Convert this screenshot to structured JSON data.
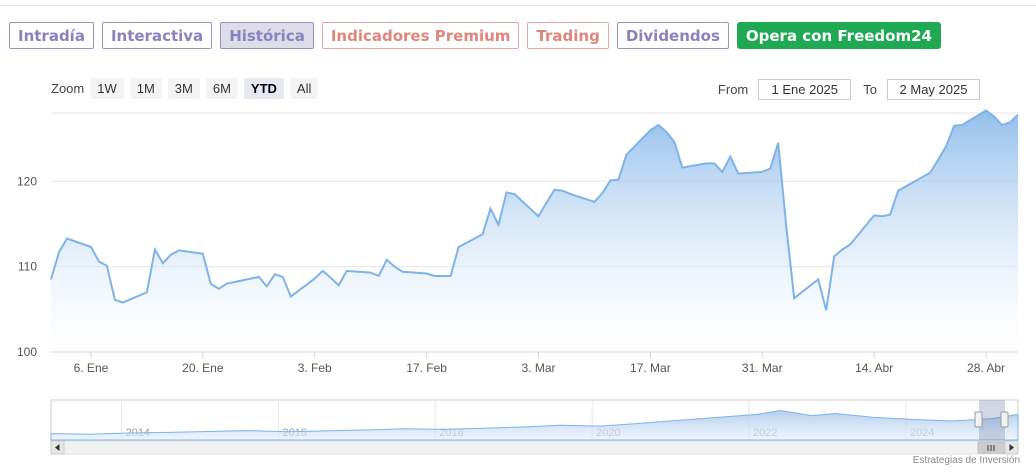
{
  "tabs": [
    {
      "label": "Intradía",
      "style": "normal"
    },
    {
      "label": "Interactiva",
      "style": "normal"
    },
    {
      "label": "Histórica",
      "style": "active"
    },
    {
      "label": "Indicadores Premium",
      "style": "premium"
    },
    {
      "label": "Trading",
      "style": "premium"
    },
    {
      "label": "Dividendos",
      "style": "normal"
    },
    {
      "label": "Opera con Freedom24",
      "style": "cta"
    }
  ],
  "zoom": {
    "label": "Zoom",
    "buttons": [
      "1W",
      "1M",
      "3M",
      "6M",
      "YTD",
      "All"
    ],
    "selected": "YTD"
  },
  "range": {
    "from_label": "From",
    "from_value": "1 Ene 2025",
    "to_label": "To",
    "to_value": "2 May 2025"
  },
  "credit": "Estrategias de Inversión",
  "colors": {
    "line": "#7fb3e8",
    "fill_top": "#7fb3e8",
    "fill_bottom": "#ffffff",
    "accent": "#1ea952"
  },
  "chart_data": {
    "type": "area",
    "x_unit": "date",
    "ylim": [
      100,
      128
    ],
    "yticks": [
      100,
      110,
      120
    ],
    "xlim": [
      "2025-01-01",
      "2025-05-02"
    ],
    "xticks": [
      {
        "date": "2025-01-06",
        "label": "6. Ene"
      },
      {
        "date": "2025-01-20",
        "label": "20. Ene"
      },
      {
        "date": "2025-02-03",
        "label": "3. Feb"
      },
      {
        "date": "2025-02-17",
        "label": "17. Feb"
      },
      {
        "date": "2025-03-03",
        "label": "3. Mar"
      },
      {
        "date": "2025-03-17",
        "label": "17. Mar"
      },
      {
        "date": "2025-03-31",
        "label": "31. Mar"
      },
      {
        "date": "2025-04-14",
        "label": "14. Abr"
      },
      {
        "date": "2025-04-28",
        "label": "28. Abr"
      }
    ],
    "grid": true,
    "series": [
      {
        "points": [
          [
            "2025-01-01",
            108.5
          ],
          [
            "2025-01-02",
            111.7
          ],
          [
            "2025-01-03",
            113.3
          ],
          [
            "2025-01-06",
            112.3
          ],
          [
            "2025-01-07",
            110.6
          ],
          [
            "2025-01-08",
            110.1
          ],
          [
            "2025-01-09",
            106.1
          ],
          [
            "2025-01-10",
            105.8
          ],
          [
            "2025-01-13",
            107.0
          ],
          [
            "2025-01-14",
            112.0
          ],
          [
            "2025-01-15",
            110.4
          ],
          [
            "2025-01-16",
            111.4
          ],
          [
            "2025-01-17",
            111.9
          ],
          [
            "2025-01-20",
            111.5
          ],
          [
            "2025-01-21",
            108.0
          ],
          [
            "2025-01-22",
            107.4
          ],
          [
            "2025-01-23",
            108.0
          ],
          [
            "2025-01-24",
            108.2
          ],
          [
            "2025-01-27",
            108.8
          ],
          [
            "2025-01-28",
            107.7
          ],
          [
            "2025-01-29",
            109.1
          ],
          [
            "2025-01-30",
            108.8
          ],
          [
            "2025-01-31",
            106.5
          ],
          [
            "2025-02-03",
            108.6
          ],
          [
            "2025-02-04",
            109.5
          ],
          [
            "2025-02-05",
            108.7
          ],
          [
            "2025-02-06",
            107.8
          ],
          [
            "2025-02-07",
            109.5
          ],
          [
            "2025-02-10",
            109.3
          ],
          [
            "2025-02-11",
            108.9
          ],
          [
            "2025-02-12",
            110.8
          ],
          [
            "2025-02-13",
            110.0
          ],
          [
            "2025-02-14",
            109.4
          ],
          [
            "2025-02-17",
            109.2
          ],
          [
            "2025-02-18",
            108.9
          ],
          [
            "2025-02-19",
            108.9
          ],
          [
            "2025-02-20",
            108.9
          ],
          [
            "2025-02-21",
            112.3
          ],
          [
            "2025-02-24",
            113.8
          ],
          [
            "2025-02-25",
            116.8
          ],
          [
            "2025-02-26",
            114.9
          ],
          [
            "2025-02-27",
            118.7
          ],
          [
            "2025-02-28",
            118.5
          ],
          [
            "2025-03-03",
            115.9
          ],
          [
            "2025-03-04",
            117.5
          ],
          [
            "2025-03-05",
            119.0
          ],
          [
            "2025-03-06",
            118.9
          ],
          [
            "2025-03-07",
            118.5
          ],
          [
            "2025-03-10",
            117.6
          ],
          [
            "2025-03-11",
            118.6
          ],
          [
            "2025-03-12",
            120.1
          ],
          [
            "2025-03-13",
            120.2
          ],
          [
            "2025-03-14",
            123.1
          ],
          [
            "2025-03-17",
            126.0
          ],
          [
            "2025-03-18",
            126.6
          ],
          [
            "2025-03-19",
            125.8
          ],
          [
            "2025-03-20",
            124.6
          ],
          [
            "2025-03-21",
            121.6
          ],
          [
            "2025-03-24",
            122.1
          ],
          [
            "2025-03-25",
            122.1
          ],
          [
            "2025-03-26",
            121.1
          ],
          [
            "2025-03-27",
            122.9
          ],
          [
            "2025-03-28",
            120.9
          ],
          [
            "2025-03-31",
            121.1
          ],
          [
            "2025-04-01",
            121.5
          ],
          [
            "2025-04-02",
            124.5
          ],
          [
            "2025-04-03",
            114.8
          ],
          [
            "2025-04-04",
            106.3
          ],
          [
            "2025-04-07",
            108.5
          ],
          [
            "2025-04-08",
            104.9
          ],
          [
            "2025-04-09",
            111.2
          ],
          [
            "2025-04-10",
            112.0
          ],
          [
            "2025-04-11",
            112.6
          ],
          [
            "2025-04-14",
            116.0
          ],
          [
            "2025-04-15",
            115.9
          ],
          [
            "2025-04-16",
            116.1
          ],
          [
            "2025-04-17",
            118.9
          ],
          [
            "2025-04-21",
            121.0
          ],
          [
            "2025-04-22",
            122.5
          ],
          [
            "2025-04-23",
            124.1
          ],
          [
            "2025-04-24",
            126.5
          ],
          [
            "2025-04-25",
            126.6
          ],
          [
            "2025-04-28",
            128.3
          ],
          [
            "2025-04-29",
            127.6
          ],
          [
            "2025-04-30",
            126.6
          ],
          [
            "2025-05-01",
            126.9
          ],
          [
            "2025-05-02",
            127.8
          ]
        ]
      }
    ],
    "navigator": {
      "years": [
        "2014",
        "2016",
        "2018",
        "2020",
        "2022",
        "2024"
      ],
      "points": [
        [
          2013.0,
          0.08
        ],
        [
          2013.5,
          0.06
        ],
        [
          2014.0,
          0.1
        ],
        [
          2014.5,
          0.12
        ],
        [
          2015.0,
          0.15
        ],
        [
          2015.5,
          0.18
        ],
        [
          2016.0,
          0.14
        ],
        [
          2016.5,
          0.17
        ],
        [
          2017.0,
          0.2
        ],
        [
          2017.5,
          0.24
        ],
        [
          2018.0,
          0.22
        ],
        [
          2018.5,
          0.26
        ],
        [
          2019.0,
          0.3
        ],
        [
          2019.5,
          0.36
        ],
        [
          2020.0,
          0.33
        ],
        [
          2020.5,
          0.42
        ],
        [
          2021.0,
          0.52
        ],
        [
          2021.5,
          0.62
        ],
        [
          2022.0,
          0.72
        ],
        [
          2022.3,
          0.85
        ],
        [
          2022.7,
          0.68
        ],
        [
          2023.0,
          0.75
        ],
        [
          2023.5,
          0.62
        ],
        [
          2024.0,
          0.55
        ],
        [
          2024.5,
          0.5
        ],
        [
          2025.0,
          0.58
        ],
        [
          2025.33,
          0.72
        ]
      ]
    }
  }
}
